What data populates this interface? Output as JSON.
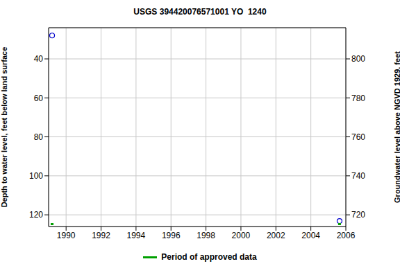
{
  "chart_data": {
    "type": "scatter",
    "title": "USGS 394420076571001 YO  1240",
    "y_label": "Depth to water level, feet below land surface",
    "y2_label": "Groundwater level above NGVD 1929, feet",
    "x": [
      1989.2,
      2005.64
    ],
    "values": [
      28,
      123.2
    ],
    "color": "#0000cc",
    "marker": "circle",
    "xlim": [
      1989,
      2006
    ],
    "xticks": [
      1990,
      1992,
      1994,
      1996,
      1998,
      2000,
      2002,
      2004,
      2006
    ],
    "ylim": [
      24,
      126
    ],
    "yticks": [
      40,
      60,
      80,
      100,
      120
    ],
    "y2lim": [
      714,
      816
    ],
    "y2ticks": [
      720,
      740,
      760,
      780,
      800
    ],
    "grid": true,
    "legend": "bottom",
    "approved_periods": {
      "label": "Period of approved data",
      "color": "#00a000",
      "x": [
        1989.2,
        2005.64
      ]
    }
  }
}
